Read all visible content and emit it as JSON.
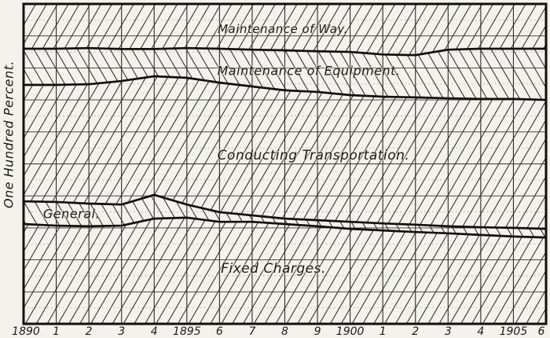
{
  "figure": {
    "paper_color": "#f3f2ed",
    "ink_color": "#1f1c17"
  },
  "chart_data": {
    "type": "area",
    "variant": "stacked-percentage-band-chart",
    "title": "",
    "xlabel": "",
    "ylabel": "One Hundred Percent.",
    "ylim": [
      0,
      100
    ],
    "grid": "on",
    "legend_position": "labels-inside-bands",
    "years": [
      1890,
      1891,
      1892,
      1893,
      1894,
      1895,
      1896,
      1897,
      1898,
      1899,
      1900,
      1901,
      1902,
      1903,
      1904,
      1905,
      1906
    ],
    "x_tick_labels": [
      "1890",
      "1",
      "2",
      "3",
      "4",
      "1895",
      "6",
      "7",
      "8",
      "9",
      "1900",
      "1",
      "2",
      "3",
      "4",
      "1905",
      "6"
    ],
    "bands": [
      {
        "label": "Maintenance of Way.",
        "hatch": "forward-diagonal",
        "share_pct": [
          14.0,
          14.0,
          13.8,
          14.1,
          14.1,
          13.8,
          14.0,
          14.3,
          14.5,
          14.8,
          15.0,
          15.8,
          16.0,
          14.3,
          14.0,
          14.0,
          14.0
        ]
      },
      {
        "label": "Maintenance of Equipment.",
        "hatch": "back-diagonal",
        "share_pct": [
          11.3,
          11.3,
          11.3,
          10.0,
          8.5,
          9.3,
          10.6,
          11.5,
          12.5,
          12.7,
          13.5,
          13.2,
          13.2,
          15.2,
          15.7,
          15.7,
          16.0
        ]
      },
      {
        "label": "Conducting Transportation.",
        "hatch": "forward-diagonal",
        "share_pct": [
          36.4,
          36.6,
          37.3,
          38.6,
          37.1,
          39.6,
          40.5,
          40.3,
          40.1,
          40.1,
          39.6,
          39.6,
          39.8,
          40.0,
          40.1,
          40.3,
          40.3
        ]
      },
      {
        "label": "General.",
        "hatch": "back-diagonal",
        "share_pct": [
          7.1,
          7.4,
          7.1,
          6.6,
          7.4,
          4.1,
          3.0,
          2.0,
          1.7,
          1.9,
          2.2,
          2.2,
          2.3,
          2.2,
          2.4,
          2.7,
          2.7
        ]
      },
      {
        "label": "Fixed Charges.",
        "hatch": "forward-diagonal",
        "share_pct": [
          31.2,
          30.7,
          30.5,
          30.7,
          32.9,
          33.2,
          31.9,
          31.9,
          31.2,
          30.5,
          29.7,
          29.2,
          28.7,
          28.3,
          27.8,
          27.3,
          27.0
        ]
      }
    ],
    "cumulative_boundaries_pct_from_top": {
      "way_bottom": [
        14.0,
        14.0,
        13.8,
        14.1,
        14.1,
        13.8,
        14.0,
        14.3,
        14.5,
        14.8,
        15.0,
        15.8,
        16.0,
        14.3,
        14.0,
        14.0,
        14.0
      ],
      "equipment_bottom": [
        25.3,
        25.3,
        25.1,
        24.1,
        22.6,
        23.1,
        24.6,
        25.8,
        27.0,
        27.5,
        28.5,
        29.0,
        29.2,
        29.5,
        29.7,
        29.7,
        30.0
      ],
      "transportation_bottom": [
        61.7,
        61.9,
        62.4,
        62.7,
        59.7,
        62.7,
        65.1,
        66.1,
        67.1,
        67.6,
        68.1,
        68.6,
        69.0,
        69.5,
        69.8,
        70.0,
        70.3
      ],
      "general_bottom": [
        68.8,
        69.3,
        69.5,
        69.3,
        67.1,
        66.8,
        68.1,
        68.1,
        68.8,
        69.5,
        70.3,
        70.8,
        71.3,
        71.7,
        72.2,
        72.7,
        73.0
      ]
    }
  }
}
